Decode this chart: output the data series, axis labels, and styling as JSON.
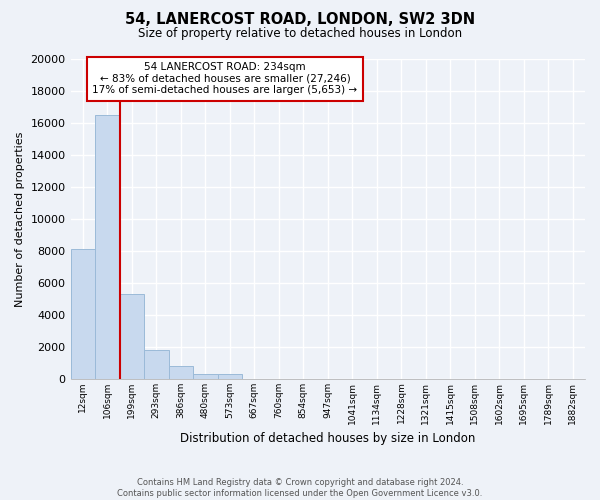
{
  "title": "54, LANERCOST ROAD, LONDON, SW2 3DN",
  "subtitle": "Size of property relative to detached houses in London",
  "xlabel": "Distribution of detached houses by size in London",
  "ylabel": "Number of detached properties",
  "bar_color": "#c8d9ee",
  "bar_edge_color": "#9bbad8",
  "vline_color": "#cc0000",
  "categories": [
    "12sqm",
    "106sqm",
    "199sqm",
    "293sqm",
    "386sqm",
    "480sqm",
    "573sqm",
    "667sqm",
    "760sqm",
    "854sqm",
    "947sqm",
    "1041sqm",
    "1134sqm",
    "1228sqm",
    "1321sqm",
    "1415sqm",
    "1508sqm",
    "1602sqm",
    "1695sqm",
    "1789sqm",
    "1882sqm"
  ],
  "values": [
    8100,
    16500,
    5300,
    1800,
    800,
    280,
    280,
    0,
    0,
    0,
    0,
    0,
    0,
    0,
    0,
    0,
    0,
    0,
    0,
    0,
    0
  ],
  "ylim": [
    0,
    20000
  ],
  "yticks": [
    0,
    2000,
    4000,
    6000,
    8000,
    10000,
    12000,
    14000,
    16000,
    18000,
    20000
  ],
  "annotation_title": "54 LANERCOST ROAD: 234sqm",
  "annotation_line1": "← 83% of detached houses are smaller (27,246)",
  "annotation_line2": "17% of semi-detached houses are larger (5,653) →",
  "annotation_box_color": "white",
  "annotation_box_edge": "#cc0000",
  "footer_line1": "Contains HM Land Registry data © Crown copyright and database right 2024.",
  "footer_line2": "Contains public sector information licensed under the Open Government Licence v3.0.",
  "background_color": "#eef2f8",
  "grid_color": "#d0d8e8",
  "vline_bin_index": 2
}
